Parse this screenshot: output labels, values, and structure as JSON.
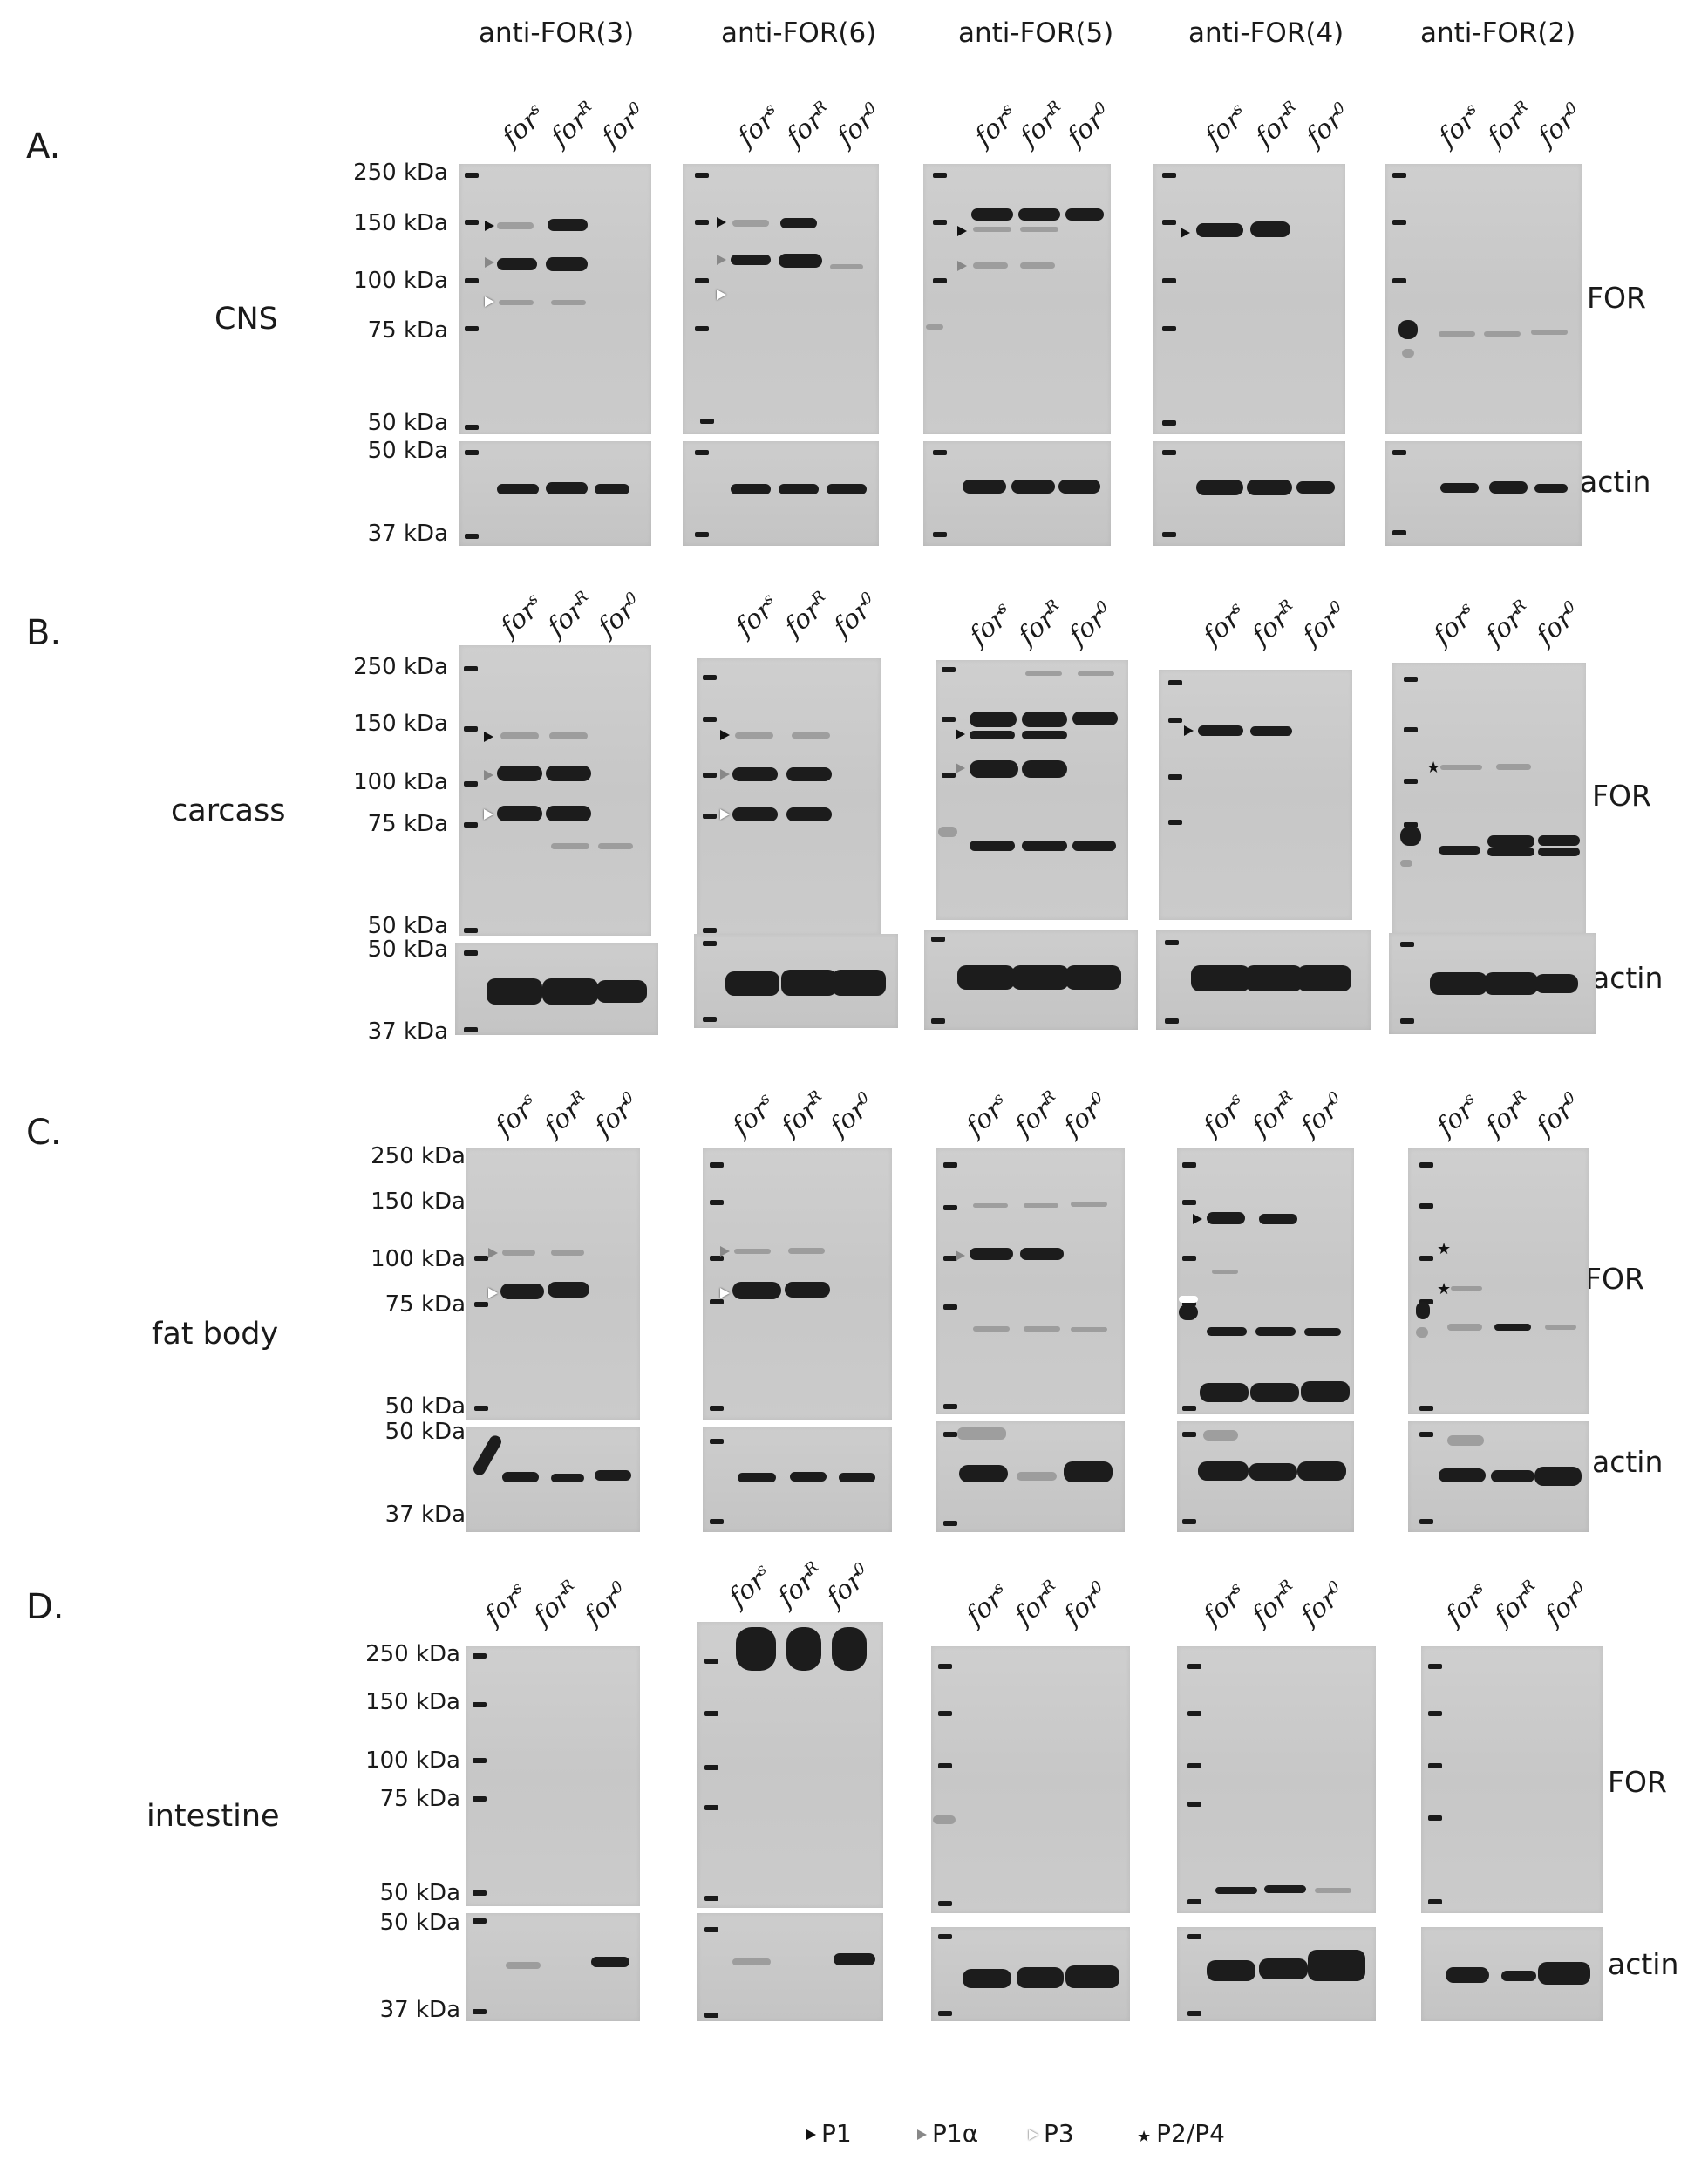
{
  "columns": [
    "anti-FOR(3)",
    "anti-FOR(6)",
    "anti-FOR(5)",
    "anti-FOR(4)",
    "anti-FOR(2)"
  ],
  "lanes": [
    {
      "base": "for",
      "sup": "s"
    },
    {
      "base": "for",
      "sup": "R"
    },
    {
      "base": "for",
      "sup": "0"
    }
  ],
  "sections": [
    {
      "letter": "A.",
      "tissue": "CNS",
      "mw_upper": [
        "250 kDa",
        "150 kDa",
        "100 kDa",
        "75 kDa",
        "50 kDa"
      ],
      "mw_lower": [
        "50 kDa",
        "37 kDa"
      ]
    },
    {
      "letter": "B.",
      "tissue": "carcass",
      "mw_upper": [
        "250 kDa",
        "150 kDa",
        "100 kDa",
        "75 kDa",
        "50 kDa"
      ],
      "mw_lower": [
        "50 kDa",
        "37 kDa"
      ]
    },
    {
      "letter": "C.",
      "tissue": "fat body",
      "mw_upper": [
        "250 kDa",
        "150 kDa",
        "100 kDa",
        "75 kDa",
        "50 kDa"
      ],
      "mw_lower": [
        "50 kDa",
        "37 kDa"
      ]
    },
    {
      "letter": "D.",
      "tissue": "intestine",
      "mw_upper": [
        "250 kDa",
        "150 kDa",
        "100 kDa",
        "75 kDa",
        "50 kDa"
      ],
      "mw_lower": [
        "50 kDa",
        "37 kDa"
      ]
    }
  ],
  "side_labels": {
    "for": "FOR",
    "actin": "actin"
  },
  "legend": [
    {
      "mark": "black",
      "label": "P1"
    },
    {
      "mark": "gray",
      "label": "P1α"
    },
    {
      "mark": "white",
      "label": "P3"
    },
    {
      "mark": "star",
      "label": "P2/P4"
    }
  ]
}
